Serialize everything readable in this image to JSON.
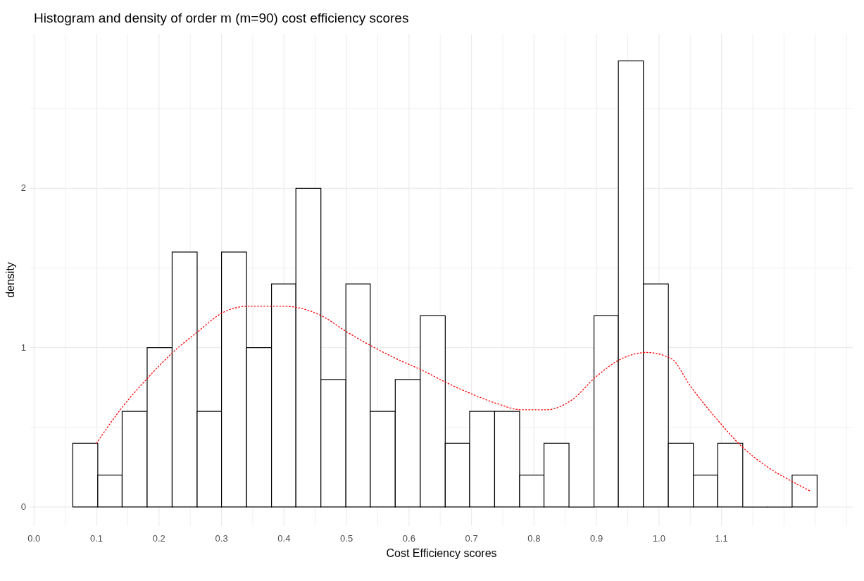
{
  "chart_data": {
    "type": "histogram",
    "title": "Histogram and density of order m (m=90) cost efficiency scores",
    "xlabel": "Cost Efficiency scores",
    "ylabel": "density",
    "bins": [
      0.062,
      0.102,
      0.141,
      0.181,
      0.221,
      0.261,
      0.3,
      0.34,
      0.38,
      0.419,
      0.459,
      0.499,
      0.538,
      0.578,
      0.618,
      0.658,
      0.697,
      0.737,
      0.777,
      0.816,
      0.856,
      0.896,
      0.935,
      0.975,
      1.015,
      1.055,
      1.094,
      1.134,
      1.174,
      1.213,
      1.253
    ],
    "values": [
      0.4,
      0.2,
      0.6,
      1.0,
      1.6,
      0.6,
      1.6,
      1.0,
      1.4,
      2.0,
      0.8,
      1.4,
      0.6,
      0.8,
      1.2,
      0.4,
      0.6,
      0.6,
      0.2,
      0.4,
      0,
      1.2,
      2.8,
      1.4,
      0.4,
      0.2,
      0.4,
      0,
      0,
      0.2
    ],
    "color": "#ffffff",
    "series": [
      {
        "type": "line",
        "color": "#ff0000",
        "line_style": "dotted",
        "x": [
          0.1,
          0.142,
          0.182,
          0.222,
          0.262,
          0.302,
          0.342,
          0.4,
          0.46,
          0.5,
          0.54,
          0.58,
          0.62,
          0.66,
          0.7,
          0.74,
          0.78,
          0.82,
          0.86,
          0.9,
          0.94,
          0.98,
          1.02,
          1.05,
          1.095,
          1.135,
          1.174,
          1.213,
          1.242
        ],
        "values": [
          0.4,
          0.63,
          0.81,
          0.97,
          1.1,
          1.22,
          1.26,
          1.26,
          1.2,
          1.1,
          1.01,
          0.93,
          0.86,
          0.78,
          0.71,
          0.65,
          0.61,
          0.61,
          0.67,
          0.82,
          0.93,
          0.97,
          0.93,
          0.76,
          0.54,
          0.37,
          0.25,
          0.16,
          0.1
        ]
      }
    ],
    "xlim": [
      -0.006,
      1.31
    ],
    "ylim": [
      -0.12,
      2.97
    ],
    "xticks": [
      {
        "value": 0,
        "label": "0.0"
      },
      {
        "value": 0.05,
        "label": null
      },
      0.1,
      {
        "value": 0.15,
        "label": null
      },
      0.2,
      {
        "value": 0.25,
        "label": null
      },
      0.3,
      {
        "value": 0.35,
        "label": null
      },
      0.4,
      {
        "value": 0.45,
        "label": null
      },
      0.5,
      {
        "value": 0.55,
        "label": null
      },
      0.6,
      {
        "value": 0.65,
        "label": null
      },
      0.7,
      {
        "value": 0.75,
        "label": null
      },
      0.8,
      {
        "value": 0.85,
        "label": null
      },
      0.9,
      {
        "value": 0.95,
        "label": null
      },
      {
        "value": 1,
        "label": "1.0"
      },
      {
        "value": 1.05,
        "label": null
      },
      1.1,
      {
        "value": 1.15,
        "label": null
      },
      {
        "value": 1.2,
        "label": null
      },
      {
        "value": 1.25,
        "label": null
      },
      {
        "value": 1.3,
        "label": null
      }
    ],
    "yticks": [
      0,
      {
        "value": 0.5,
        "label": null
      },
      1,
      {
        "value": 1.5,
        "label": null
      },
      2,
      {
        "value": 2.5,
        "label": null
      }
    ],
    "grid": true
  }
}
